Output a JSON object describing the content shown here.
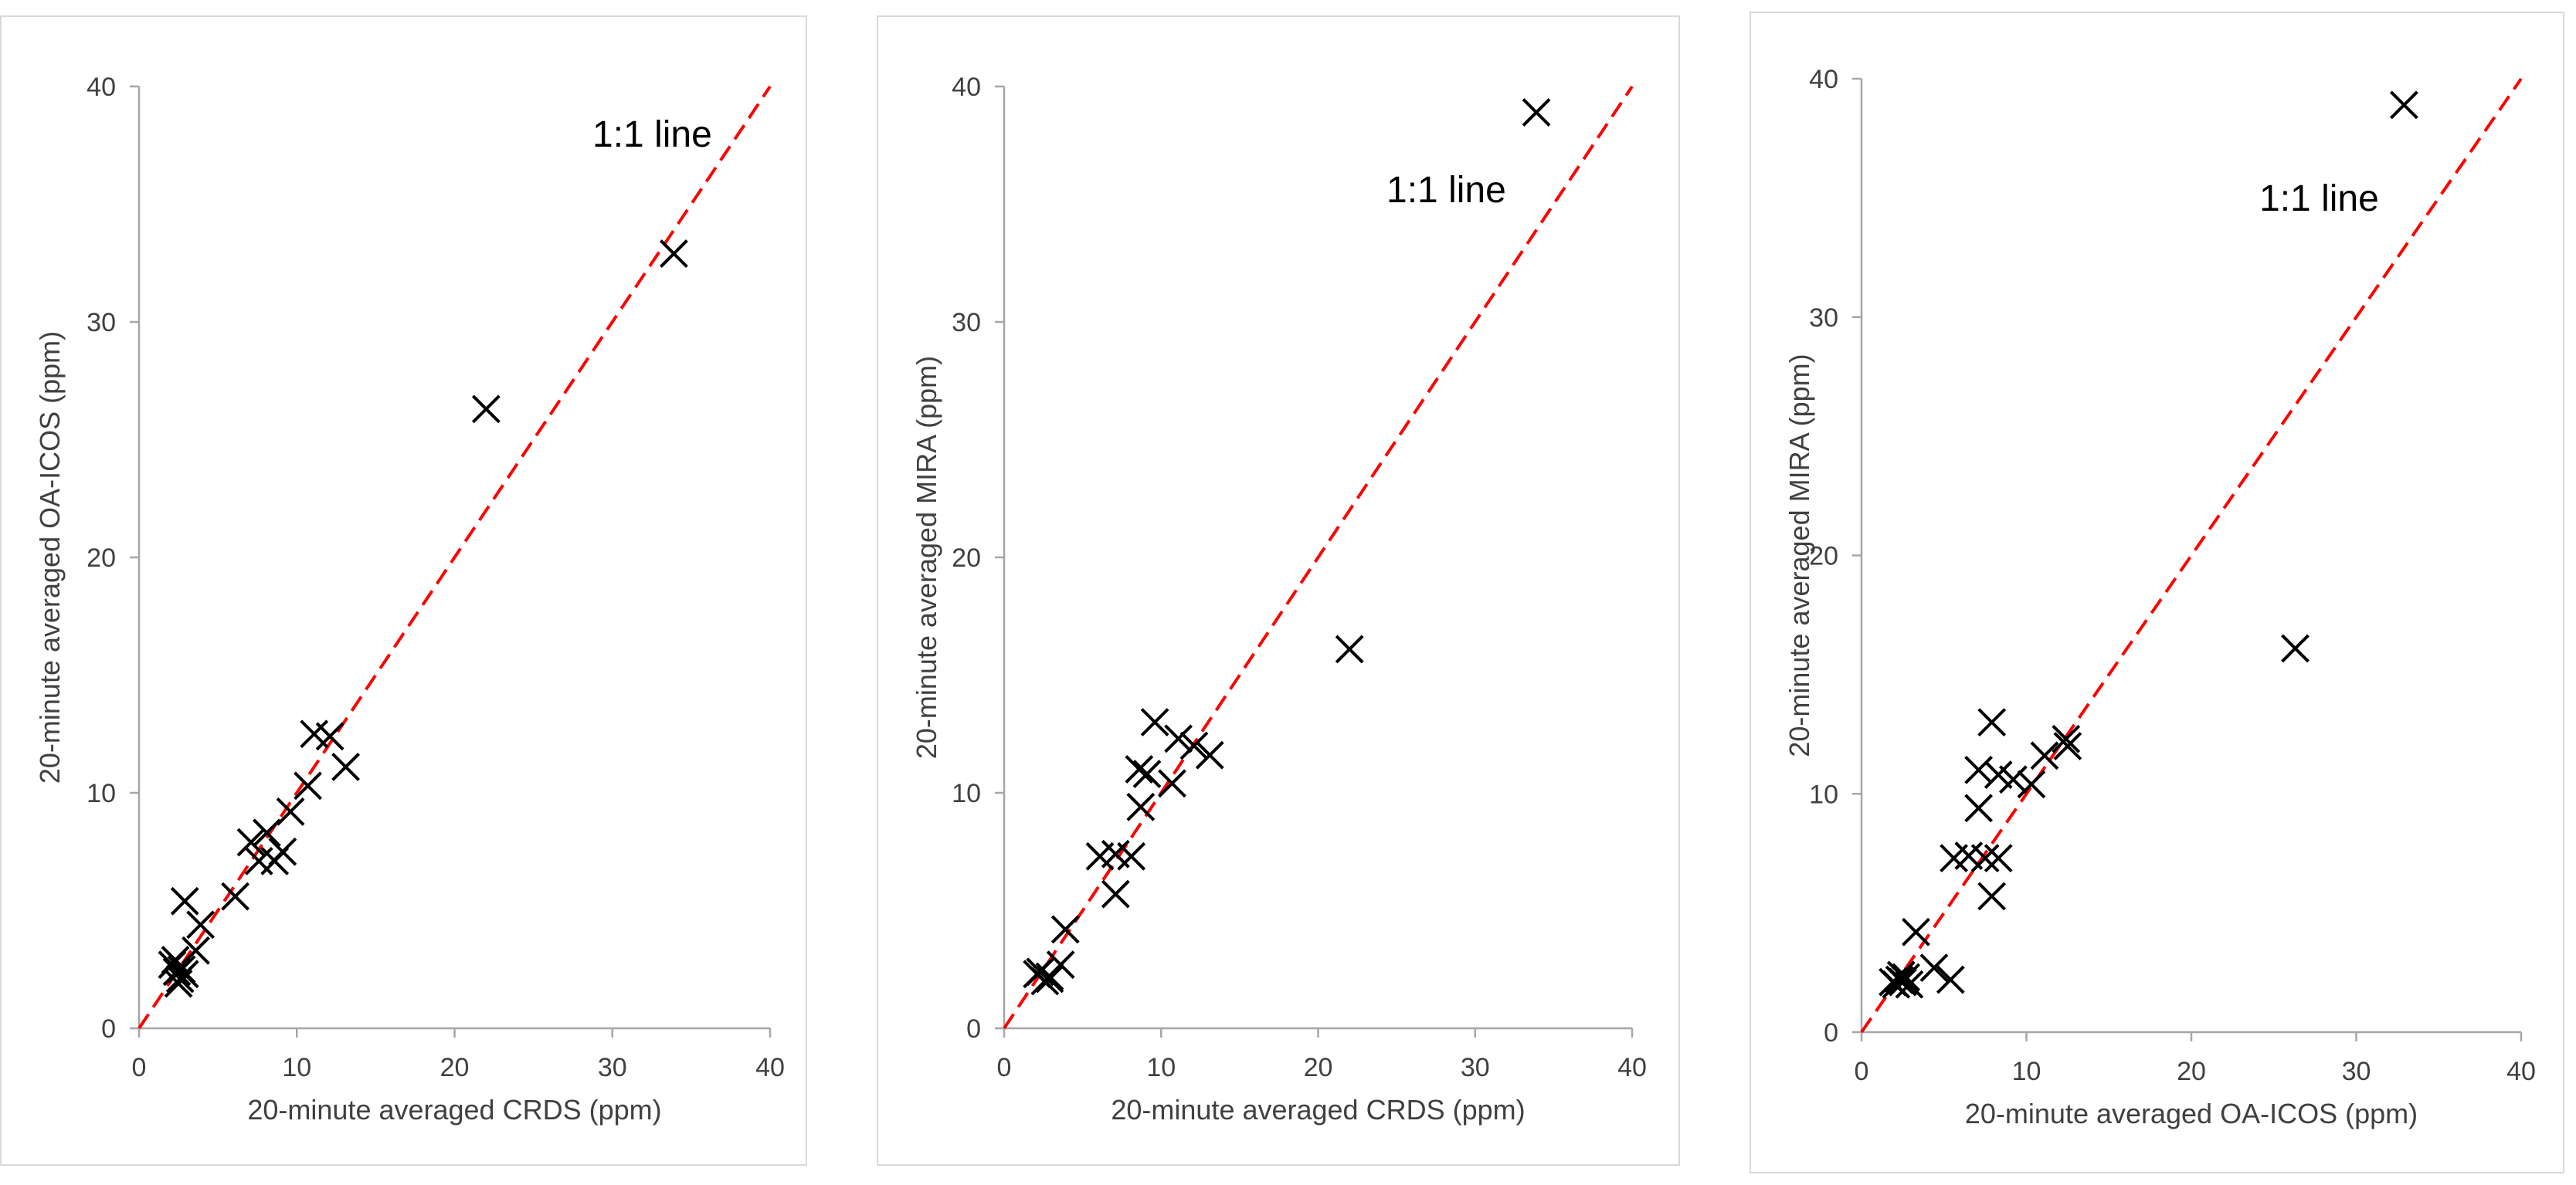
{
  "chart_data": [
    {
      "type": "scatter",
      "title": "",
      "xlabel": "20-minute averaged CRDS (ppm)",
      "ylabel": "20-minute averaged OA-ICOS (ppm)",
      "xlim": [
        0,
        40
      ],
      "ylim": [
        0,
        40
      ],
      "xticks": [
        "0",
        "10",
        "20",
        "30",
        "40"
      ],
      "yticks": [
        "0",
        "10",
        "20",
        "30",
        "40"
      ],
      "grid": false,
      "annotation": "1:1 line",
      "reference_line": {
        "label": "1:1 line",
        "color": "#ff0000",
        "style": "dashed"
      },
      "marker": "x",
      "series": [
        {
          "name": "OA-ICOS vs CRDS",
          "x": [
            33.9,
            22.0,
            11.1,
            12.1,
            13.1,
            10.7,
            9.6,
            8.1,
            9.1,
            8.6,
            7.1,
            7.6,
            6.1,
            2.9,
            3.9,
            3.6,
            2.3,
            2.4,
            2.6,
            2.1,
            2.9,
            2.5,
            2.7
          ],
          "y": [
            32.9,
            26.3,
            12.5,
            12.4,
            11.1,
            10.3,
            9.2,
            8.3,
            7.5,
            7.1,
            7.9,
            7.1,
            5.6,
            5.4,
            4.4,
            3.3,
            2.9,
            2.4,
            2.1,
            2.7,
            2.3,
            1.9,
            2.5
          ]
        }
      ],
      "colors": {
        "marker": "#000000",
        "reference": "#ff0000",
        "axis": "#a6a6a6",
        "text": "#404040"
      }
    },
    {
      "type": "scatter",
      "title": "",
      "xlabel": "20-minute averaged CRDS (ppm)",
      "ylabel": "20-minute averaged MIRA (ppm)",
      "xlim": [
        0,
        40
      ],
      "ylim": [
        0,
        40
      ],
      "xticks": [
        "0",
        "10",
        "20",
        "30",
        "40"
      ],
      "yticks": [
        "0",
        "10",
        "20",
        "30",
        "40"
      ],
      "grid": false,
      "annotation": "1:1 line",
      "reference_line": {
        "label": "1:1 line",
        "color": "#ff0000",
        "style": "dashed"
      },
      "marker": "x",
      "series": [
        {
          "name": "MIRA vs CRDS",
          "x": [
            33.9,
            22.0,
            9.6,
            11.1,
            12.1,
            13.1,
            10.7,
            9.1,
            8.6,
            8.7,
            6.1,
            7.1,
            8.1,
            7.1,
            3.9,
            3.6,
            2.9,
            2.3,
            2.6,
            2.1,
            2.9
          ],
          "y": [
            38.9,
            16.1,
            13.0,
            12.3,
            12.0,
            11.6,
            10.4,
            10.8,
            11.0,
            9.4,
            7.3,
            7.4,
            7.3,
            5.7,
            4.2,
            2.7,
            2.2,
            2.4,
            2.0,
            2.3,
            2.1
          ]
        }
      ],
      "colors": {
        "marker": "#000000",
        "reference": "#ff0000",
        "axis": "#a6a6a6",
        "text": "#404040"
      }
    },
    {
      "type": "scatter",
      "title": "",
      "xlabel": "20-minute averaged OA-ICOS (ppm)",
      "ylabel": "20-minute averaged MIRA (ppm)",
      "xlim": [
        0,
        40
      ],
      "ylim": [
        0,
        40
      ],
      "xticks": [
        "0",
        "10",
        "20",
        "30",
        "40"
      ],
      "yticks": [
        "0",
        "10",
        "20",
        "30",
        "40"
      ],
      "grid": false,
      "annotation": "1:1 line",
      "reference_line": {
        "label": "1:1 line",
        "color": "#ff0000",
        "style": "dashed"
      },
      "marker": "x",
      "series": [
        {
          "name": "MIRA vs OA-ICOS",
          "x": [
            32.9,
            26.3,
            7.9,
            7.1,
            8.3,
            9.2,
            10.3,
            12.4,
            12.5,
            11.1,
            7.1,
            5.6,
            6.5,
            7.5,
            8.3,
            7.9,
            3.3,
            4.4,
            5.4,
            2.4,
            2.1,
            2.7,
            1.9,
            2.3,
            2.9,
            2.5
          ],
          "y": [
            38.9,
            16.1,
            13.0,
            11.0,
            10.8,
            10.6,
            10.4,
            12.3,
            12.0,
            11.6,
            9.4,
            7.3,
            7.4,
            7.3,
            7.3,
            5.7,
            4.2,
            2.7,
            2.2,
            2.4,
            2.0,
            2.3,
            2.1,
            2.2,
            2.0,
            2.1
          ]
        }
      ],
      "colors": {
        "marker": "#000000",
        "reference": "#ff0000",
        "axis": "#a6a6a6",
        "text": "#404040"
      }
    }
  ]
}
